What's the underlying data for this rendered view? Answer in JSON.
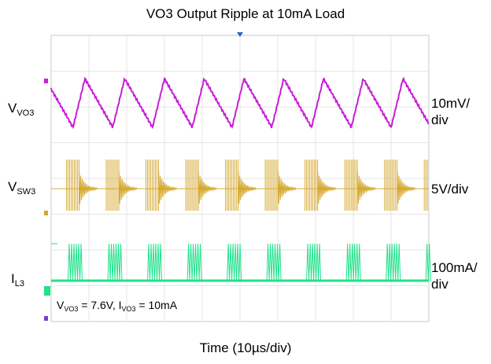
{
  "chart_data": {
    "type": "line",
    "title": "VO3 Output Ripple at 10mA Load",
    "xlabel": "Time (10µs/div)",
    "channels": [
      {
        "name_main": "V",
        "name_sub": "VO3",
        "scale": "10mV/ div",
        "color": "#c61fd6"
      },
      {
        "name_main": "V",
        "name_sub": "SW3",
        "scale": "5V/div",
        "color": "#d4a72c"
      },
      {
        "name_main": "I",
        "name_sub": "L3",
        "scale": "100mA/ div",
        "color": "#1fe28a"
      }
    ],
    "condition": {
      "v_main": "V",
      "v_sub": "VO3",
      "v_val": " = 7.6V, ",
      "i_main": "I",
      "i_sub": "VO3",
      "i_val": " = 10mA"
    },
    "x_divisions": 10,
    "y_divisions": 8,
    "ripple_periods": 9.5,
    "grid": true
  }
}
